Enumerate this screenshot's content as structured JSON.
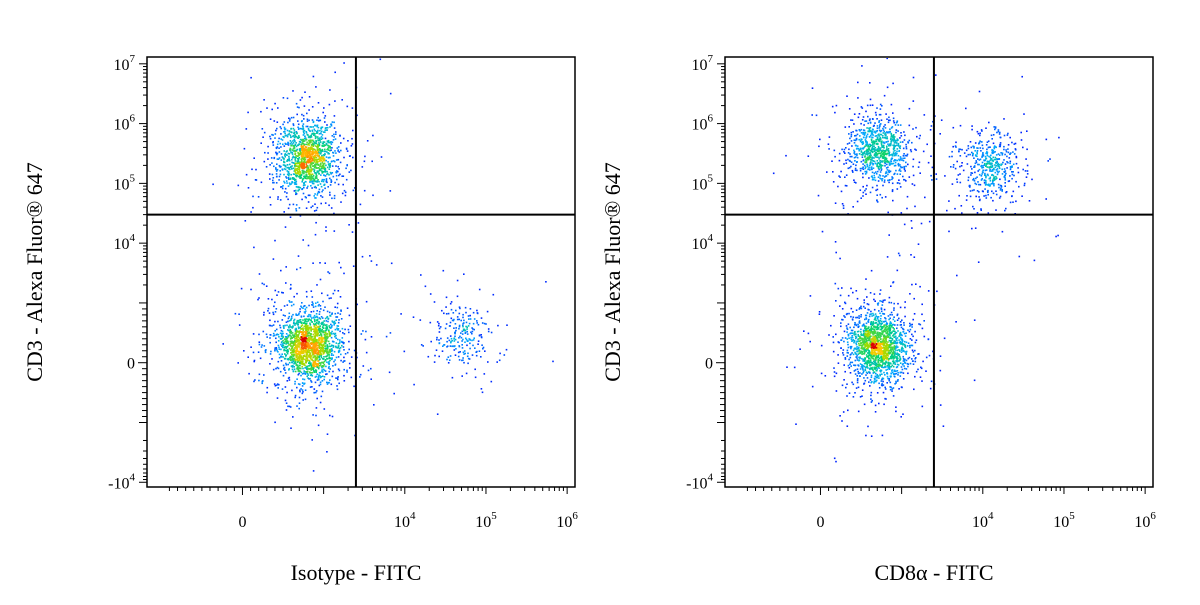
{
  "chart_data": [
    {
      "type": "scatter",
      "subtype": "flow-cytometry-density-dot-plot",
      "xlabel": "Isotype - FITC",
      "ylabel": "CD3 - Alexa Fluor® 647",
      "x_scale": "biexponential",
      "y_scale": "biexponential",
      "x_ticks": [
        {
          "value": 0,
          "base": "0",
          "exp": ""
        },
        {
          "value": 10000,
          "base": "10",
          "exp": "4"
        },
        {
          "value": 100000,
          "base": "10",
          "exp": "5"
        },
        {
          "value": 1000000,
          "base": "10",
          "exp": "6"
        }
      ],
      "y_ticks": [
        {
          "value": -10000,
          "base": "-10",
          "exp": "4"
        },
        {
          "value": 0,
          "base": "0",
          "exp": ""
        },
        {
          "value": 10000,
          "base": "10",
          "exp": "4"
        },
        {
          "value": 100000,
          "base": "10",
          "exp": "5"
        },
        {
          "value": 1000000,
          "base": "10",
          "exp": "6"
        },
        {
          "value": 10000000,
          "base": "10",
          "exp": "7"
        }
      ],
      "gates": {
        "x": 2500,
        "y": 30000
      },
      "populations": [
        {
          "x": 800,
          "y": 280000,
          "n": 1400
        },
        {
          "x": 800,
          "y": 300,
          "n": 1800
        },
        {
          "x": 50000,
          "y": 500,
          "n": 240
        }
      ],
      "grid": false,
      "legend": "none"
    },
    {
      "type": "scatter",
      "subtype": "flow-cytometry-density-dot-plot",
      "xlabel": "CD8α - FITC",
      "ylabel": "CD3 - Alexa Fluor® 647",
      "x_scale": "biexponential",
      "y_scale": "biexponential",
      "x_ticks": [
        {
          "value": 0,
          "base": "0",
          "exp": ""
        },
        {
          "value": 10000,
          "base": "10",
          "exp": "4"
        },
        {
          "value": 100000,
          "base": "10",
          "exp": "5"
        },
        {
          "value": 1000000,
          "base": "10",
          "exp": "6"
        }
      ],
      "y_ticks": [
        {
          "value": -10000,
          "base": "-10",
          "exp": "4"
        },
        {
          "value": 0,
          "base": "0",
          "exp": ""
        },
        {
          "value": 10000,
          "base": "10",
          "exp": "4"
        },
        {
          "value": 100000,
          "base": "10",
          "exp": "5"
        },
        {
          "value": 1000000,
          "base": "10",
          "exp": "6"
        },
        {
          "value": 10000000,
          "base": "10",
          "exp": "7"
        }
      ],
      "gates": {
        "x": 2500,
        "y": 30000
      },
      "populations": [
        {
          "x": 700,
          "y": 350000,
          "n": 900
        },
        {
          "x": 12000,
          "y": 200000,
          "n": 500
        },
        {
          "x": 700,
          "y": 300,
          "n": 1700
        }
      ],
      "grid": false,
      "legend": "none"
    }
  ]
}
